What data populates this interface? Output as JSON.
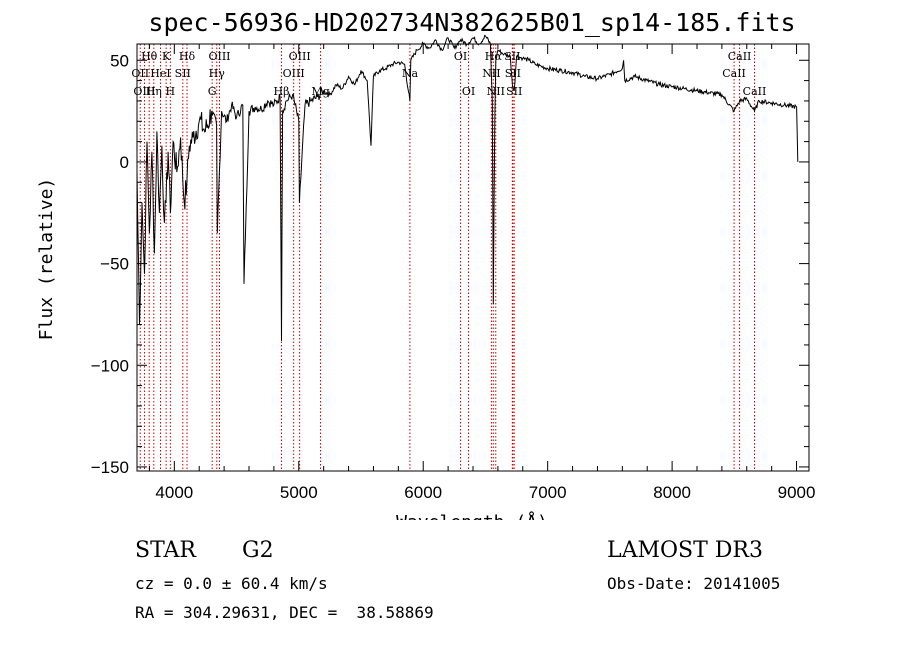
{
  "chart_data": {
    "type": "line",
    "title": "spec-56936-HD202734N382625B01_sp14-185.fits",
    "xlabel": "Wavelength (Å)",
    "ylabel": "Flux (relative)",
    "xlim": [
      3700,
      9100
    ],
    "ylim": [
      -152,
      58
    ],
    "xticks": [
      4000,
      5000,
      6000,
      7000,
      8000,
      9000
    ],
    "yticks": [
      -150,
      -100,
      -50,
      0,
      50
    ],
    "ytick_labels": [
      "−150",
      "−100",
      "−50",
      "0",
      "50"
    ],
    "line_color": "#000000",
    "marker_color": "#cc0000",
    "series": [
      {
        "name": "flux",
        "x": [
          3700,
          3720,
          3740,
          3760,
          3780,
          3800,
          3820,
          3840,
          3860,
          3880,
          3900,
          3920,
          3933,
          3950,
          3968,
          3990,
          4020,
          4050,
          4080,
          4101,
          4120,
          4150,
          4200,
          4250,
          4300,
          4340,
          4345,
          4380,
          4420,
          4460,
          4500,
          4550,
          4560,
          4600,
          4650,
          4700,
          4750,
          4800,
          4850,
          4861,
          4870,
          4900,
          4950,
          5000,
          5005,
          5050,
          5100,
          5150,
          5200,
          5250,
          5300,
          5350,
          5400,
          5450,
          5500,
          5550,
          5580,
          5600,
          5650,
          5700,
          5750,
          5800,
          5850,
          5893,
          5900,
          5950,
          6000,
          6050,
          6100,
          6150,
          6200,
          6250,
          6300,
          6350,
          6400,
          6450,
          6500,
          6540,
          6555,
          6563,
          6575,
          6583,
          6600,
          6650,
          6700,
          6717,
          6731,
          6750,
          6800,
          6850,
          6900,
          6950,
          7000,
          7100,
          7200,
          7300,
          7400,
          7500,
          7600,
          7610,
          7620,
          7700,
          7800,
          7900,
          8000,
          8100,
          8200,
          8300,
          8400,
          8498,
          8542,
          8600,
          8662,
          8700,
          8800,
          8900,
          9000,
          9010
        ],
        "y": [
          -5,
          -80,
          -20,
          -55,
          10,
          -35,
          5,
          -45,
          15,
          -25,
          8,
          -30,
          -20,
          5,
          -25,
          10,
          -5,
          12,
          -20,
          -10,
          8,
          12,
          20,
          15,
          25,
          18,
          -35,
          25,
          20,
          28,
          22,
          28,
          -60,
          25,
          27,
          26,
          30,
          28,
          32,
          -88,
          25,
          30,
          33,
          20,
          -20,
          28,
          30,
          32,
          35,
          33,
          38,
          36,
          42,
          38,
          45,
          40,
          8,
          42,
          45,
          46,
          48,
          49,
          48,
          30,
          50,
          55,
          58,
          56,
          60,
          55,
          61,
          56,
          60,
          58,
          61,
          58,
          62,
          58,
          30,
          -70,
          20,
          50,
          55,
          53,
          52,
          38,
          35,
          52,
          51,
          50,
          48,
          47,
          46,
          45,
          44,
          42,
          41,
          43,
          46,
          50,
          40,
          42,
          40,
          38,
          37,
          36,
          35,
          34,
          33,
          25,
          30,
          31,
          25,
          30,
          29,
          28,
          27,
          0
        ]
      }
    ],
    "line_markers": [
      {
        "x": 3798,
        "label": "Hθ",
        "row": 0
      },
      {
        "x": 3726,
        "label": "OII",
        "row": 1
      },
      {
        "x": 3760,
        "label": "OIII",
        "row": 2
      },
      {
        "x": 3835,
        "label": "Hη",
        "row": 2
      },
      {
        "x": 3889,
        "label": "HeI",
        "row": 1
      },
      {
        "x": 3934,
        "label": "K",
        "row": 0
      },
      {
        "x": 3968,
        "label": "H",
        "row": 2
      },
      {
        "x": 4068,
        "label": "SII",
        "row": 1
      },
      {
        "x": 4102,
        "label": "Hδ",
        "row": 0
      },
      {
        "x": 4304,
        "label": "G",
        "row": 2
      },
      {
        "x": 4341,
        "label": "Hγ",
        "row": 1
      },
      {
        "x": 4363,
        "label": "OIII",
        "row": 0
      },
      {
        "x": 4861,
        "label": "Hβ",
        "row": 2
      },
      {
        "x": 4959,
        "label": "OIII",
        "row": 1
      },
      {
        "x": 5007,
        "label": "OIII",
        "row": 0
      },
      {
        "x": 5175,
        "label": "Mg",
        "row": 2
      },
      {
        "x": 5893,
        "label": "Na",
        "row": 1
      },
      {
        "x": 6300,
        "label": "OI",
        "row": 0
      },
      {
        "x": 6364,
        "label": "OI",
        "row": 2
      },
      {
        "x": 6548,
        "label": "NII",
        "row": 1
      },
      {
        "x": 6563,
        "label": "Hα",
        "row": 0
      },
      {
        "x": 6583,
        "label": "NII",
        "row": 2
      },
      {
        "x": 6716,
        "label": "SII",
        "row": 0
      },
      {
        "x": 6720,
        "label": "SII",
        "row": 1
      },
      {
        "x": 6731,
        "label": "SII",
        "row": 2
      },
      {
        "x": 8498,
        "label": "CaII",
        "row": 1
      },
      {
        "x": 8542,
        "label": "CaII",
        "row": 0
      },
      {
        "x": 8662,
        "label": "CaII",
        "row": 2
      }
    ]
  },
  "info": {
    "class": "STAR",
    "subclass": "G2",
    "survey": "LAMOST DR3",
    "cz": "cz = 0.0 ± 60.4 km/s",
    "obs_date": "Obs-Date: 20141005",
    "coords": "RA = 304.29631, DEC =  38.58869"
  }
}
